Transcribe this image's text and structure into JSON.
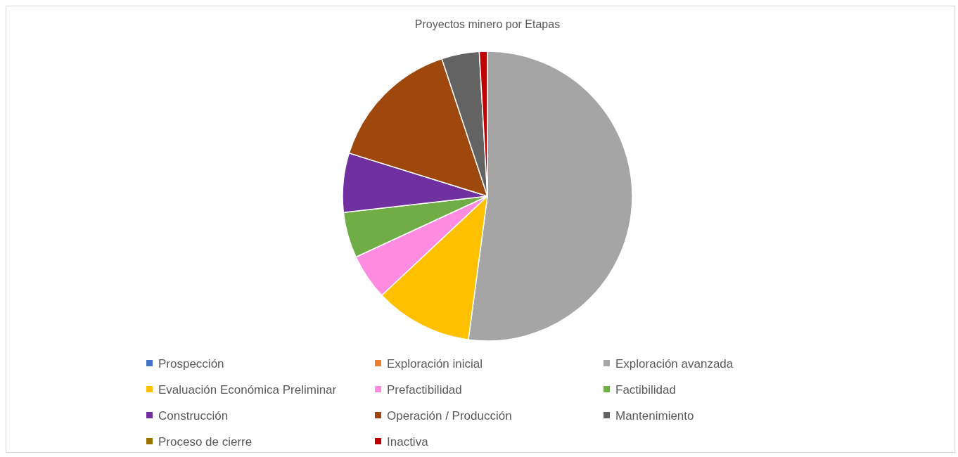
{
  "chart_data": {
    "type": "pie",
    "title": "Proyectos minero por Etapas",
    "categories": [
      "Prospección",
      "Exploración inicial",
      "Exploración avanzada",
      "Evaluación Económica Preliminar",
      "Prefactibilidad",
      "Factibilidad",
      "Construcción",
      "Operación / Producción",
      "Mantenimiento",
      "Proceso de cierre",
      "Inactiva"
    ],
    "values": [
      0,
      0,
      52.1,
      10.9,
      5.1,
      5.1,
      6.6,
      15.1,
      4.2,
      0,
      0.9
    ],
    "colors": [
      "#4472c4",
      "#ed7d31",
      "#a5a5a5",
      "#ffc000",
      "#ff8ce0",
      "#70ad47",
      "#7030a0",
      "#9e480e",
      "#636363",
      "#997300",
      "#c00000"
    ],
    "legend": "bottom"
  }
}
